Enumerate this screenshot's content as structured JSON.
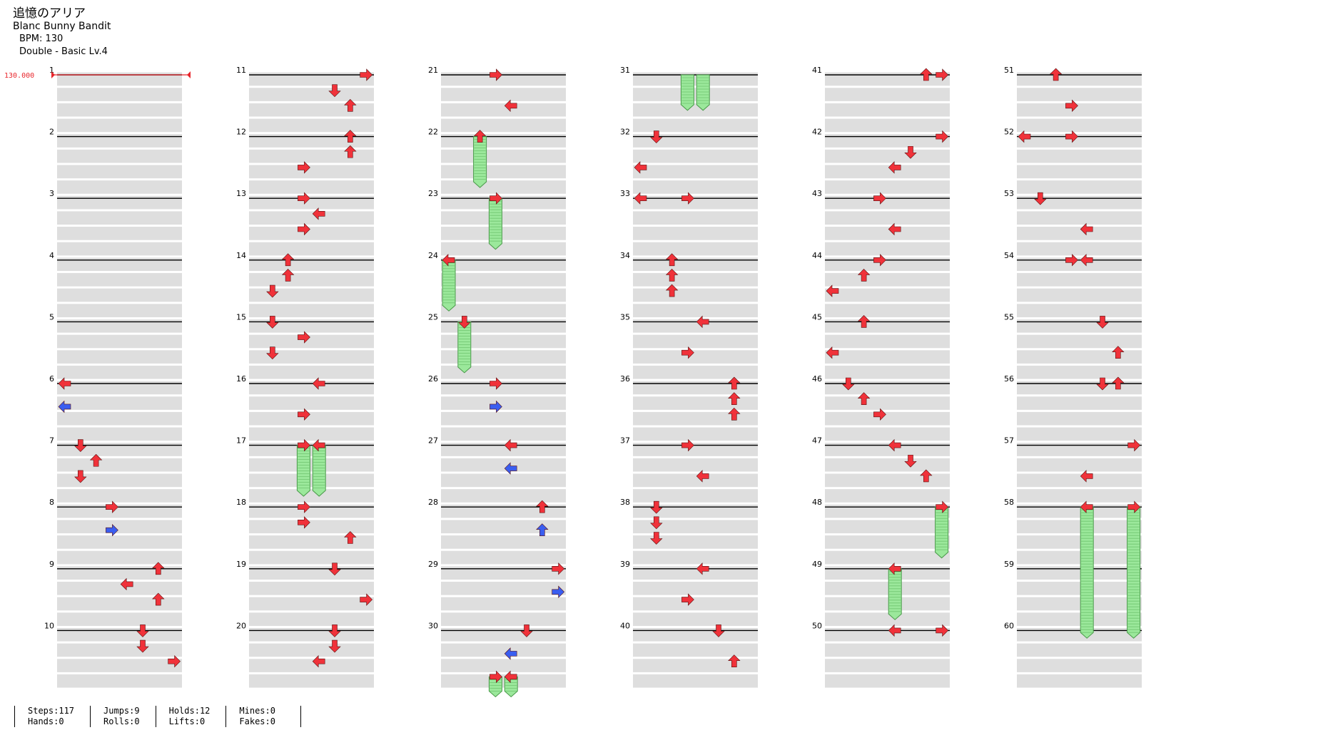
{
  "header": {
    "title": "追憶のアリア",
    "artist": "Blanc Bunny Bandit",
    "bpm": "BPM: 130",
    "difficulty": "Double - Basic  Lv.4"
  },
  "bpm_marker": "130.000",
  "colors": {
    "red": "#f0323a",
    "blue": "#3a5ef0",
    "hold": "#9be89b",
    "band": "#dedede"
  },
  "measures_per_column": 10,
  "arrows": [
    {
      "m": 6,
      "b": 0,
      "l": 0
    },
    {
      "m": 6,
      "b": 1.5,
      "l": 0,
      "c": "blue"
    },
    {
      "m": 7,
      "b": 0,
      "l": 1
    },
    {
      "m": 7,
      "b": 1,
      "l": 2
    },
    {
      "m": 7,
      "b": 2,
      "l": 1
    },
    {
      "m": 8,
      "b": 0,
      "l": 3
    },
    {
      "m": 8,
      "b": 1.5,
      "l": 3,
      "c": "blue"
    },
    {
      "m": 9,
      "b": 0,
      "l": 6
    },
    {
      "m": 9,
      "b": 1,
      "l": 4
    },
    {
      "m": 9,
      "b": 2,
      "l": 6
    },
    {
      "m": 10,
      "b": 0,
      "l": 5
    },
    {
      "m": 10,
      "b": 1,
      "l": 5
    },
    {
      "m": 10,
      "b": 2,
      "l": 7
    },
    {
      "m": 11,
      "b": 0,
      "l": 7
    },
    {
      "m": 11,
      "b": 1,
      "l": 5
    },
    {
      "m": 11,
      "b": 2,
      "l": 6
    },
    {
      "m": 12,
      "b": 0,
      "l": 6
    },
    {
      "m": 12,
      "b": 1,
      "l": 6
    },
    {
      "m": 12,
      "b": 2,
      "l": 3
    },
    {
      "m": 13,
      "b": 0,
      "l": 3
    },
    {
      "m": 13,
      "b": 1,
      "l": 4
    },
    {
      "m": 13,
      "b": 2,
      "l": 3
    },
    {
      "m": 14,
      "b": 0,
      "l": 2
    },
    {
      "m": 14,
      "b": 1,
      "l": 2
    },
    {
      "m": 14,
      "b": 2,
      "l": 1
    },
    {
      "m": 15,
      "b": 0,
      "l": 1
    },
    {
      "m": 15,
      "b": 1,
      "l": 3
    },
    {
      "m": 15,
      "b": 2,
      "l": 1
    },
    {
      "m": 16,
      "b": 0,
      "l": 4
    },
    {
      "m": 16,
      "b": 2,
      "l": 3
    },
    {
      "m": 17,
      "b": 0,
      "l": 3
    },
    {
      "m": 17,
      "b": 0,
      "l": 4
    },
    {
      "m": 18,
      "b": 0,
      "l": 3
    },
    {
      "m": 18,
      "b": 1,
      "l": 3
    },
    {
      "m": 18,
      "b": 2,
      "l": 6
    },
    {
      "m": 19,
      "b": 0,
      "l": 5
    },
    {
      "m": 19,
      "b": 2,
      "l": 7
    },
    {
      "m": 20,
      "b": 0,
      "l": 5
    },
    {
      "m": 20,
      "b": 1,
      "l": 5
    },
    {
      "m": 20,
      "b": 2,
      "l": 4
    },
    {
      "m": 21,
      "b": 0,
      "l": 3
    },
    {
      "m": 21,
      "b": 2,
      "l": 4
    },
    {
      "m": 22,
      "b": 0,
      "l": 2
    },
    {
      "m": 23,
      "b": 0,
      "l": 3
    },
    {
      "m": 24,
      "b": 0,
      "l": 0
    },
    {
      "m": 25,
      "b": 0,
      "l": 1
    },
    {
      "m": 26,
      "b": 0,
      "l": 3
    },
    {
      "m": 26,
      "b": 1.5,
      "l": 3,
      "c": "blue"
    },
    {
      "m": 27,
      "b": 0,
      "l": 4
    },
    {
      "m": 27,
      "b": 1.5,
      "l": 4,
      "c": "blue"
    },
    {
      "m": 28,
      "b": 0,
      "l": 6
    },
    {
      "m": 28,
      "b": 1.5,
      "l": 6,
      "c": "blue"
    },
    {
      "m": 29,
      "b": 0,
      "l": 7
    },
    {
      "m": 29,
      "b": 1.5,
      "l": 7,
      "c": "blue"
    },
    {
      "m": 30,
      "b": 0,
      "l": 5
    },
    {
      "m": 30,
      "b": 1.5,
      "l": 4,
      "c": "blue"
    },
    {
      "m": 30,
      "b": 3,
      "l": 3
    },
    {
      "m": 30,
      "b": 3,
      "l": 4
    },
    {
      "m": 32,
      "b": 0,
      "l": 1
    },
    {
      "m": 32,
      "b": 2,
      "l": 0
    },
    {
      "m": 33,
      "b": 0,
      "l": 0
    },
    {
      "m": 33,
      "b": 0,
      "l": 3
    },
    {
      "m": 34,
      "b": 0,
      "l": 2
    },
    {
      "m": 34,
      "b": 1,
      "l": 2
    },
    {
      "m": 34,
      "b": 2,
      "l": 2
    },
    {
      "m": 35,
      "b": 0,
      "l": 4
    },
    {
      "m": 35,
      "b": 2,
      "l": 3
    },
    {
      "m": 36,
      "b": 0,
      "l": 6
    },
    {
      "m": 36,
      "b": 1,
      "l": 6
    },
    {
      "m": 36,
      "b": 2,
      "l": 6
    },
    {
      "m": 37,
      "b": 0,
      "l": 3
    },
    {
      "m": 37,
      "b": 2,
      "l": 4
    },
    {
      "m": 38,
      "b": 0,
      "l": 1
    },
    {
      "m": 38,
      "b": 1,
      "l": 1
    },
    {
      "m": 38,
      "b": 2,
      "l": 1
    },
    {
      "m": 39,
      "b": 0,
      "l": 4
    },
    {
      "m": 39,
      "b": 2,
      "l": 3
    },
    {
      "m": 40,
      "b": 0,
      "l": 5
    },
    {
      "m": 40,
      "b": 2,
      "l": 6
    },
    {
      "m": 41,
      "b": 0,
      "l": 6
    },
    {
      "m": 41,
      "b": 0,
      "l": 7
    },
    {
      "m": 42,
      "b": 0,
      "l": 7
    },
    {
      "m": 42,
      "b": 1,
      "l": 5
    },
    {
      "m": 42,
      "b": 2,
      "l": 4
    },
    {
      "m": 43,
      "b": 0,
      "l": 3
    },
    {
      "m": 43,
      "b": 2,
      "l": 4
    },
    {
      "m": 44,
      "b": 0,
      "l": 3
    },
    {
      "m": 44,
      "b": 1,
      "l": 2
    },
    {
      "m": 44,
      "b": 2,
      "l": 0
    },
    {
      "m": 45,
      "b": 0,
      "l": 2
    },
    {
      "m": 45,
      "b": 2,
      "l": 0
    },
    {
      "m": 46,
      "b": 0,
      "l": 1
    },
    {
      "m": 46,
      "b": 1,
      "l": 2
    },
    {
      "m": 46,
      "b": 2,
      "l": 3
    },
    {
      "m": 47,
      "b": 0,
      "l": 4
    },
    {
      "m": 47,
      "b": 1,
      "l": 5
    },
    {
      "m": 47,
      "b": 2,
      "l": 6
    },
    {
      "m": 48,
      "b": 0,
      "l": 7
    },
    {
      "m": 49,
      "b": 0,
      "l": 4
    },
    {
      "m": 50,
      "b": 0,
      "l": 4
    },
    {
      "m": 50,
      "b": 0,
      "l": 7
    },
    {
      "m": 51,
      "b": 0,
      "l": 2
    },
    {
      "m": 51,
      "b": 2,
      "l": 3
    },
    {
      "m": 52,
      "b": 0,
      "l": 0
    },
    {
      "m": 52,
      "b": 0,
      "l": 3
    },
    {
      "m": 53,
      "b": 0,
      "l": 1
    },
    {
      "m": 53,
      "b": 2,
      "l": 4
    },
    {
      "m": 54,
      "b": 0,
      "l": 3
    },
    {
      "m": 54,
      "b": 0,
      "l": 4
    },
    {
      "m": 55,
      "b": 0,
      "l": 5
    },
    {
      "m": 55,
      "b": 2,
      "l": 6
    },
    {
      "m": 56,
      "b": 0,
      "l": 5
    },
    {
      "m": 56,
      "b": 0,
      "l": 6
    },
    {
      "m": 57,
      "b": 0,
      "l": 7
    },
    {
      "m": 57,
      "b": 2,
      "l": 4
    },
    {
      "m": 58,
      "b": 0,
      "l": 4
    },
    {
      "m": 58,
      "b": 0,
      "l": 7
    }
  ],
  "holds": [
    {
      "m": 17,
      "b": 0,
      "l": 3,
      "len": 3.3
    },
    {
      "m": 17,
      "b": 0,
      "l": 4,
      "len": 3.3
    },
    {
      "m": 22,
      "b": 0,
      "l": 2,
      "len": 3.3
    },
    {
      "m": 23,
      "b": 0,
      "l": 3,
      "len": 3.3
    },
    {
      "m": 24,
      "b": 0,
      "l": 0,
      "len": 3.3
    },
    {
      "m": 25,
      "b": 0,
      "l": 1,
      "len": 3.3
    },
    {
      "m": 30,
      "b": 3,
      "l": 3,
      "len": 1.3
    },
    {
      "m": 30,
      "b": 3,
      "l": 4,
      "len": 1.3
    },
    {
      "m": 31,
      "b": 0,
      "l": 3,
      "len": 2.3
    },
    {
      "m": 31,
      "b": 0,
      "l": 4,
      "len": 2.3
    },
    {
      "m": 48,
      "b": 0,
      "l": 7,
      "len": 3.3
    },
    {
      "m": 49,
      "b": 0,
      "l": 4,
      "len": 3.3
    },
    {
      "m": 58,
      "b": 0,
      "l": 4,
      "len": 8.5
    },
    {
      "m": 58,
      "b": 0,
      "l": 7,
      "len": 8.5
    }
  ],
  "stats": {
    "steps": "Steps:117",
    "hands": "Hands:0",
    "jumps": "Jumps:9",
    "rolls": "Rolls:0",
    "holds": "Holds:12",
    "lifts": "Lifts:0",
    "mines": "Mines:0",
    "fakes": "Fakes:0"
  }
}
